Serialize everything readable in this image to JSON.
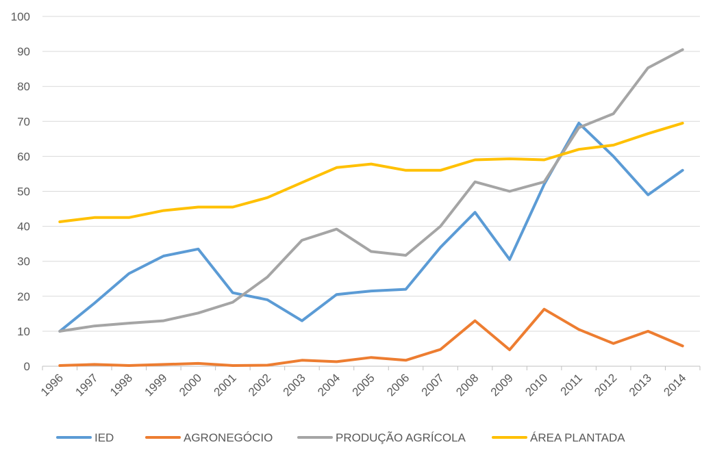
{
  "chart_data": {
    "type": "line",
    "title": "",
    "xlabel": "",
    "ylabel": "",
    "ylim": [
      0,
      100
    ],
    "yticks": [
      "0",
      "10",
      "20",
      "30",
      "40",
      "50",
      "60",
      "70",
      "80",
      "90",
      "100"
    ],
    "grid": true,
    "legend_position": "bottom",
    "categories": [
      "1996",
      "1997",
      "1998",
      "1999",
      "2000",
      "2001",
      "2002",
      "2003",
      "2004",
      "2005",
      "2006",
      "2007",
      "2008",
      "2009",
      "2010",
      "2011",
      "2012",
      "2013",
      "2014"
    ],
    "series": [
      {
        "name": "IED",
        "color": "#5b9bd5",
        "values": [
          10,
          18,
          26.5,
          31.5,
          33.5,
          21,
          19,
          13,
          20.5,
          21.5,
          22,
          34,
          44,
          30.5,
          52,
          69.5,
          60,
          49,
          56
        ]
      },
      {
        "name": "AGRONEGÓCIO",
        "color": "#ed7d31",
        "values": [
          0.2,
          0.5,
          0.2,
          0.5,
          0.8,
          0.2,
          0.3,
          1.7,
          1.3,
          2.5,
          1.7,
          4.8,
          13,
          4.7,
          16.3,
          10.5,
          6.5,
          10,
          5.8
        ]
      },
      {
        "name": "PRODUÇÃO AGRÍCOLA",
        "color": "#a5a5a5",
        "values": [
          10,
          11.5,
          12.3,
          13,
          15.2,
          18.3,
          25.5,
          36,
          39.2,
          32.8,
          31.7,
          40,
          52.7,
          50,
          52.7,
          68.2,
          72.2,
          85.3,
          90.5
        ]
      },
      {
        "name": "ÁREA PLANTADA",
        "color": "#ffc000",
        "values": [
          41.3,
          42.5,
          42.5,
          44.5,
          45.5,
          45.5,
          48.2,
          52.5,
          56.8,
          57.8,
          56,
          56,
          59,
          59.3,
          59,
          62,
          63.2,
          66.5,
          69.5
        ]
      }
    ]
  }
}
